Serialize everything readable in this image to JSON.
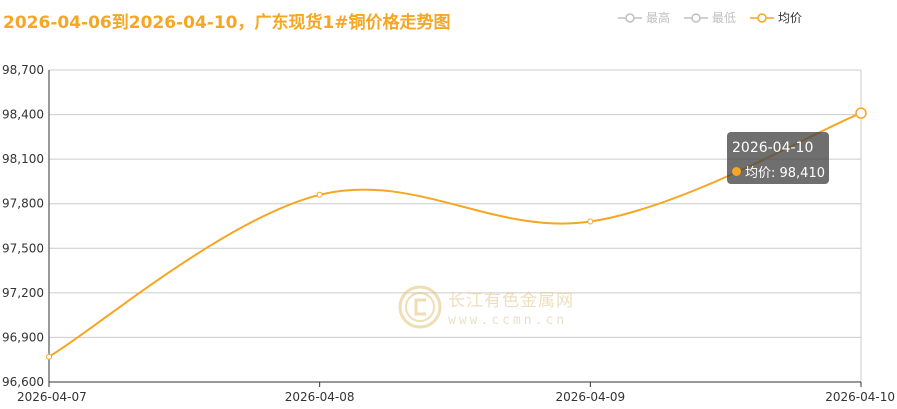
{
  "title": "2026-04-06到2026-04-10，广东现货1#铜价格走势图",
  "legend": [
    {
      "label": "最高",
      "active": false
    },
    {
      "label": "最低",
      "active": false
    },
    {
      "label": "均价",
      "active": true
    }
  ],
  "tooltip": {
    "date": "2026-04-10",
    "series_label": "均价: 98,410"
  },
  "watermark": {
    "name": "长江有色金属网",
    "url": "www.ccmn.cn"
  },
  "colors": {
    "accent": "#f5a623",
    "inactive": "#c0c0c0",
    "grid": "#cccccc"
  },
  "chart_data": {
    "type": "line",
    "title": "2026-04-06到2026-04-10，广东现货1#铜价格走势图",
    "categories": [
      "2026-04-07",
      "2026-04-08",
      "2026-04-09",
      "2026-04-10"
    ],
    "series": [
      {
        "name": "均价",
        "values": [
          96770,
          97860,
          97680,
          98410
        ]
      }
    ],
    "ylim": [
      96600,
      98700
    ],
    "yticks": [
      96600,
      96900,
      97200,
      97500,
      97800,
      98100,
      98400,
      98700
    ],
    "ytick_labels": [
      "96,600",
      "96,900",
      "97,200",
      "97,500",
      "97,800",
      "98,100",
      "98,400",
      "98,700"
    ],
    "grid": true,
    "legend_position": "top-right"
  }
}
